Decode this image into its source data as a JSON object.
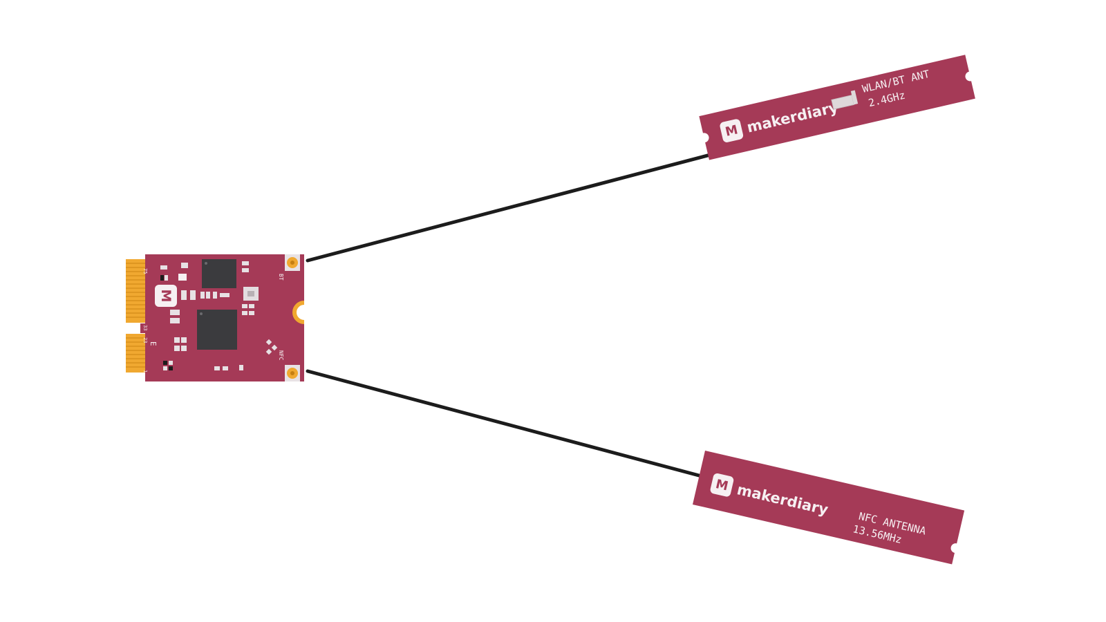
{
  "colors": {
    "board": "#a53a57",
    "board_dark": "#8c2c47",
    "gold": "#f0a830",
    "chip": "#3b3b3e",
    "cable": "#1c1c1c",
    "label": "#f6f0f2"
  },
  "module": {
    "logo_glyph": "M",
    "pin_top": "75",
    "pin_mid_a": "33",
    "pin_mid_b": "23",
    "pin_bottom": "1",
    "key_label": "E",
    "bt_label": "BT",
    "nfc_label": "NFC"
  },
  "antenna_wlan": {
    "brand": "makerdiary",
    "logo_glyph": "M",
    "line1": "WLAN/BT ANT",
    "line2": "2.4GHz"
  },
  "antenna_nfc": {
    "brand": "makerdiary",
    "logo_glyph": "M",
    "line1": "NFC ANTENNA",
    "line2": "13.56MHz"
  }
}
